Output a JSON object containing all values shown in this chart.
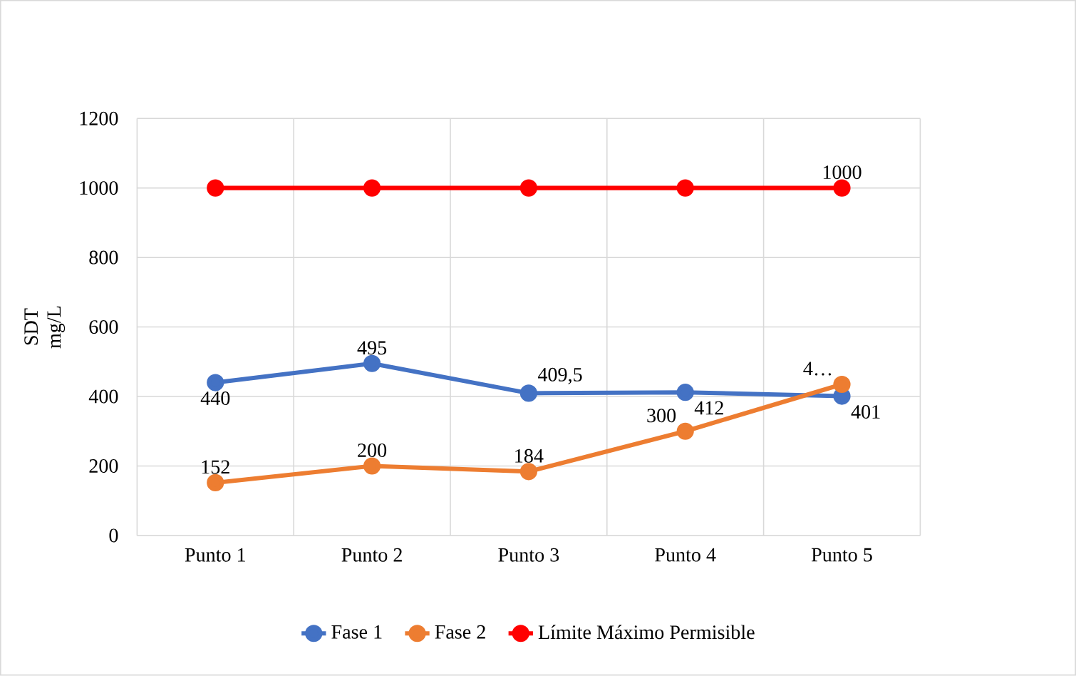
{
  "chart_data": {
    "type": "line",
    "ylabel": "SDT mg/L",
    "categories": [
      "Punto 1",
      "Punto 2",
      "Punto 3",
      "Punto 4",
      "Punto 5"
    ],
    "series": [
      {
        "name": "Fase 1",
        "color": "#4472c4",
        "values": [
          440,
          495,
          409.5,
          412,
          401
        ],
        "value_labels": [
          "440",
          "495",
          "409,5",
          "412",
          "401"
        ]
      },
      {
        "name": "Fase 2",
        "color": "#ed7d31",
        "values": [
          152,
          200,
          184,
          300,
          435
        ],
        "value_labels": [
          "152",
          "200",
          "184",
          "300",
          "4…"
        ]
      },
      {
        "name": "Límite Máximo Permisible",
        "color": "#ff0000",
        "values": [
          1000,
          1000,
          1000,
          1000,
          1000
        ],
        "value_labels": [
          null,
          null,
          null,
          null,
          "1000"
        ]
      }
    ],
    "ylim": [
      0,
      1200
    ],
    "yticks": [
      0,
      200,
      400,
      600,
      800,
      1000,
      1200
    ],
    "grid": true,
    "legend": "bottom",
    "marker": "circle",
    "line_style": "solid"
  }
}
